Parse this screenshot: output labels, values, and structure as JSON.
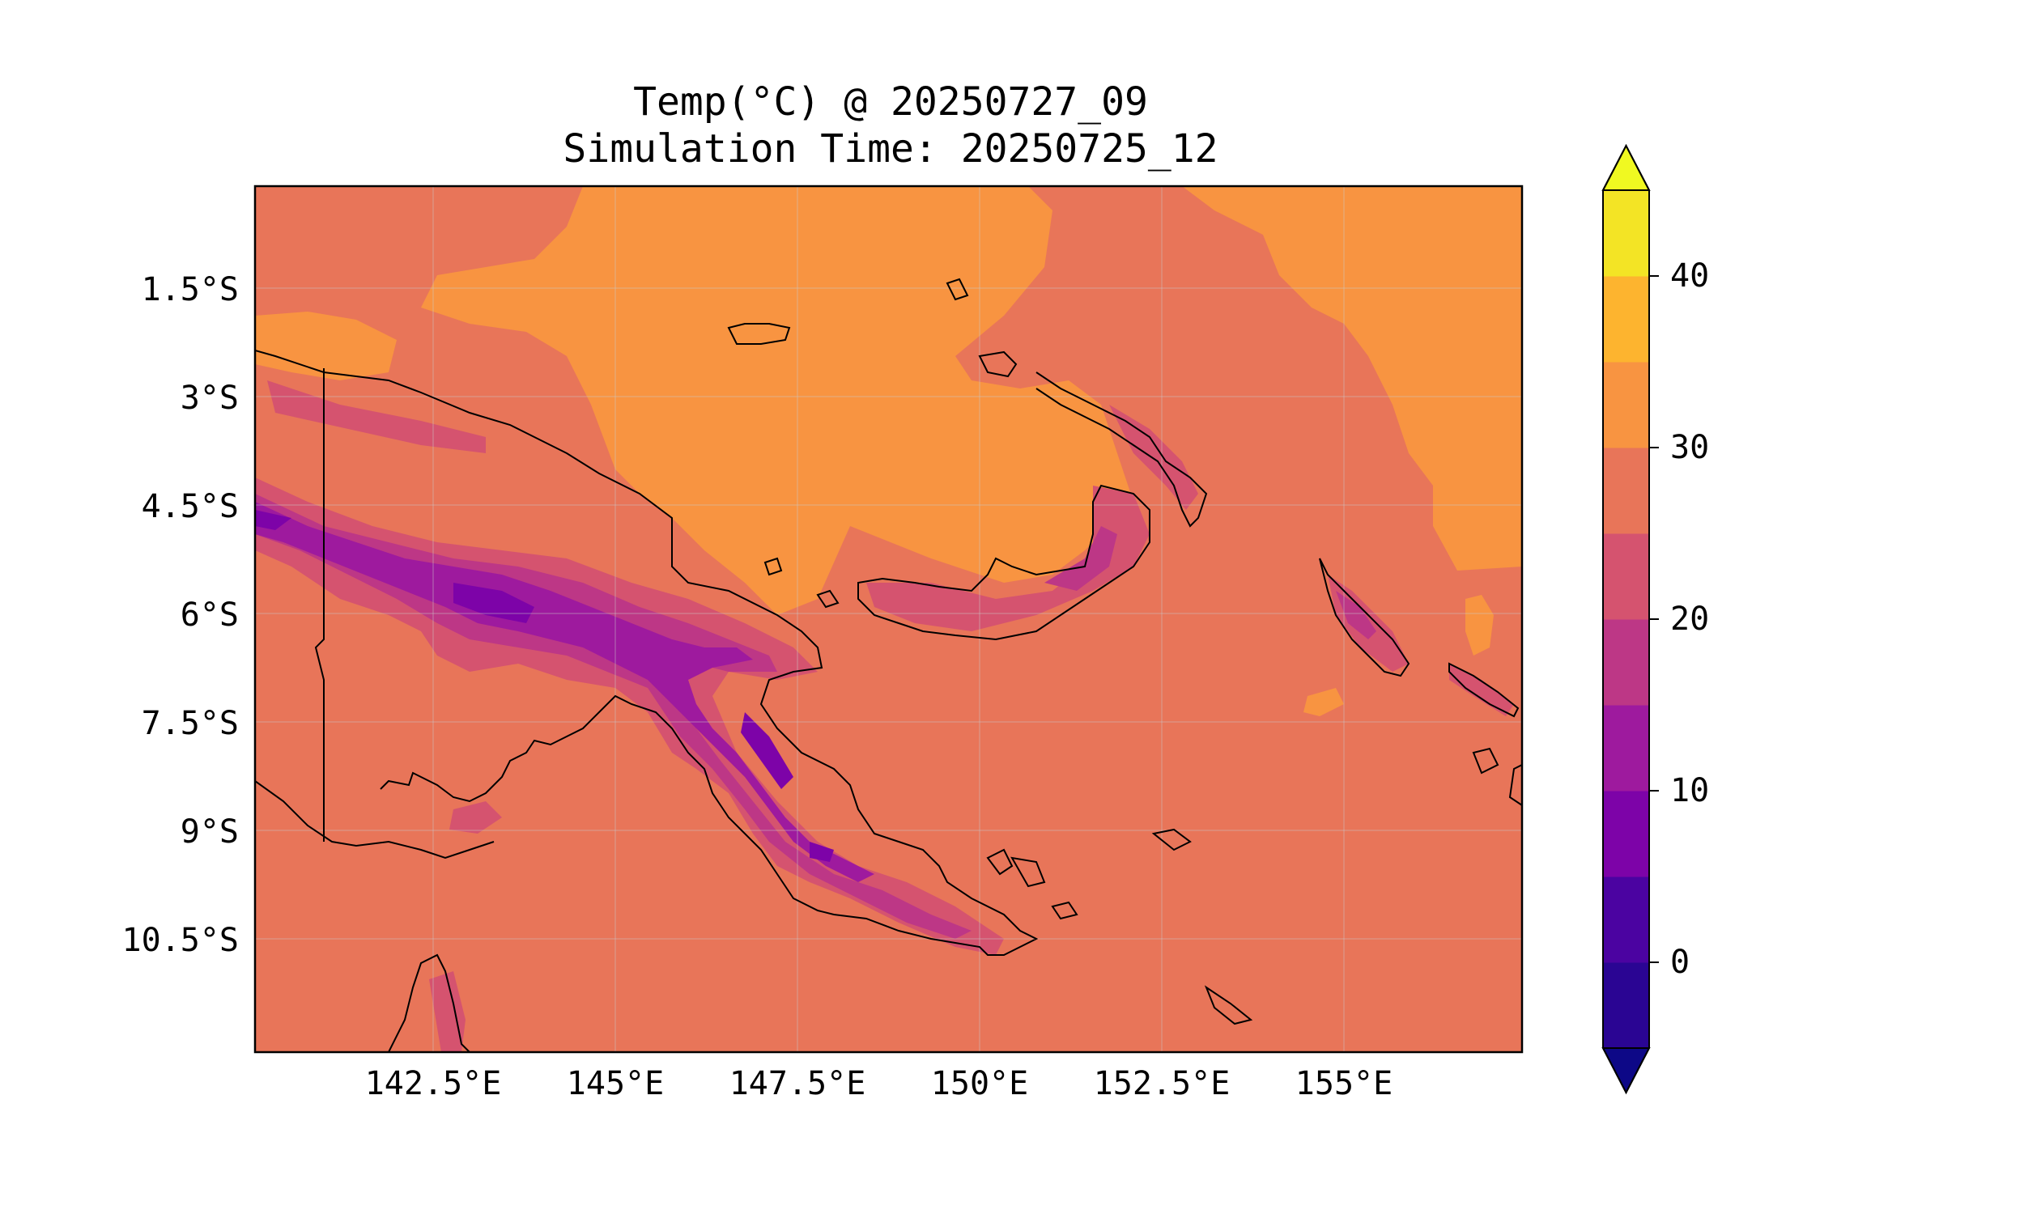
{
  "figure": {
    "title_line1": "Temp(°C) @ 20250727_09",
    "title_line2": "Simulation Time: 20250725_12"
  },
  "map": {
    "lon_range": [
      140.0,
      157.5
    ],
    "lat_range": [
      -12.0,
      0.0
    ],
    "lon_ticks": [
      {
        "value": 142.5,
        "label": "142.5°E"
      },
      {
        "value": 145.0,
        "label": "145°E"
      },
      {
        "value": 147.5,
        "label": "147.5°E"
      },
      {
        "value": 150.0,
        "label": "150°E"
      },
      {
        "value": 152.5,
        "label": "152.5°E"
      },
      {
        "value": 155.0,
        "label": "155°E"
      }
    ],
    "lat_ticks": [
      {
        "value": -1.5,
        "label": "1.5°S"
      },
      {
        "value": -3.0,
        "label": "3°S"
      },
      {
        "value": -4.5,
        "label": "4.5°S"
      },
      {
        "value": -6.0,
        "label": "6°S"
      },
      {
        "value": -7.5,
        "label": "7.5°S"
      },
      {
        "value": -9.0,
        "label": "9°S"
      },
      {
        "value": -10.5,
        "label": "10.5°S"
      }
    ],
    "gridlines": true,
    "background_value_range": [
      25,
      30
    ],
    "background_color": "#e87559"
  },
  "colorbar": {
    "levels": [
      -5,
      0,
      5,
      10,
      15,
      20,
      25,
      30,
      35,
      40,
      45
    ],
    "colors": [
      "#2a0593",
      "#4b03a1",
      "#7d03a8",
      "#9e1a9e",
      "#bd3786",
      "#d5536f",
      "#e87559",
      "#f89441",
      "#fdb42f",
      "#f3e425",
      "#0d0887"
    ],
    "extend": "both",
    "under_color": "#0d0887",
    "over_color": "#f0f921",
    "tick_values": [
      0,
      10,
      20,
      30,
      40
    ],
    "tick_labels": [
      "0",
      "10",
      "20",
      "30",
      "40"
    ]
  },
  "chart_data": {
    "type": "heatmap",
    "title": "Temp(°C) @ 20250727_09\nSimulation Time: 20250725_12",
    "xlabel": "",
    "ylabel": "",
    "xlim": [
      140.0,
      157.5
    ],
    "ylim": [
      -12.0,
      0.0
    ],
    "colorbar_range": [
      -5,
      45
    ],
    "dominant_value_range": [
      25,
      30
    ]
  }
}
